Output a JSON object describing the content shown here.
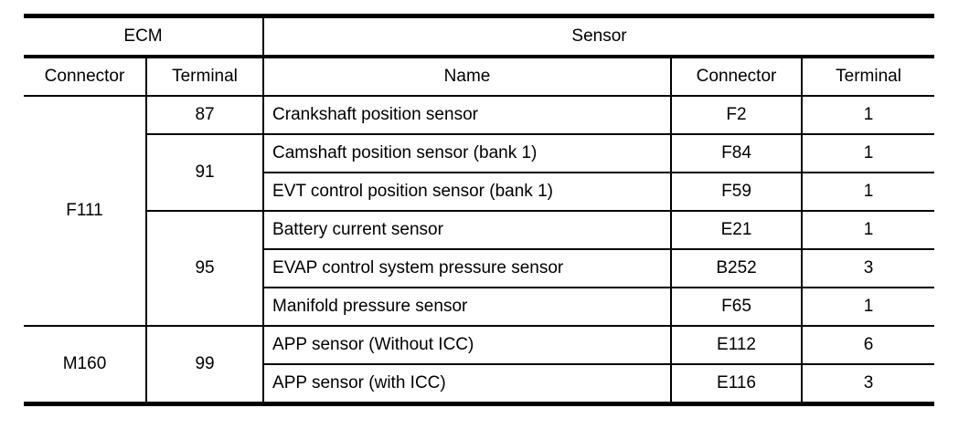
{
  "colors": {
    "background": "#ffffff",
    "text": "#000000",
    "rule": "#000000"
  },
  "table": {
    "group_headers": {
      "ecm": "ECM",
      "sensor": "Sensor"
    },
    "column_headers": {
      "ecm_connector": "Connector",
      "ecm_terminal": "Terminal",
      "name": "Name",
      "sensor_connector": "Connector",
      "sensor_terminal": "Terminal"
    },
    "ecm_groups": [
      {
        "connector": "F111",
        "terminals": [
          {
            "terminal": "87",
            "rows": [
              {
                "name": "Crankshaft position sensor",
                "connector": "F2",
                "terminal": "1"
              }
            ]
          },
          {
            "terminal": "91",
            "rows": [
              {
                "name": "Camshaft position sensor (bank 1)",
                "connector": "F84",
                "terminal": "1"
              },
              {
                "name": "EVT control position sensor (bank 1)",
                "connector": "F59",
                "terminal": "1"
              }
            ]
          },
          {
            "terminal": "95",
            "rows": [
              {
                "name": "Battery current sensor",
                "connector": "E21",
                "terminal": "1"
              },
              {
                "name": "EVAP control system pressure sensor",
                "connector": "B252",
                "terminal": "3"
              },
              {
                "name": "Manifold pressure sensor",
                "connector": "F65",
                "terminal": "1"
              }
            ]
          }
        ]
      },
      {
        "connector": "M160",
        "terminals": [
          {
            "terminal": "99",
            "rows": [
              {
                "name": "APP sensor (Without ICC)",
                "connector": "E112",
                "terminal": "6"
              },
              {
                "name": "APP sensor (with ICC)",
                "connector": "E116",
                "terminal": "3"
              }
            ]
          }
        ]
      }
    ]
  }
}
